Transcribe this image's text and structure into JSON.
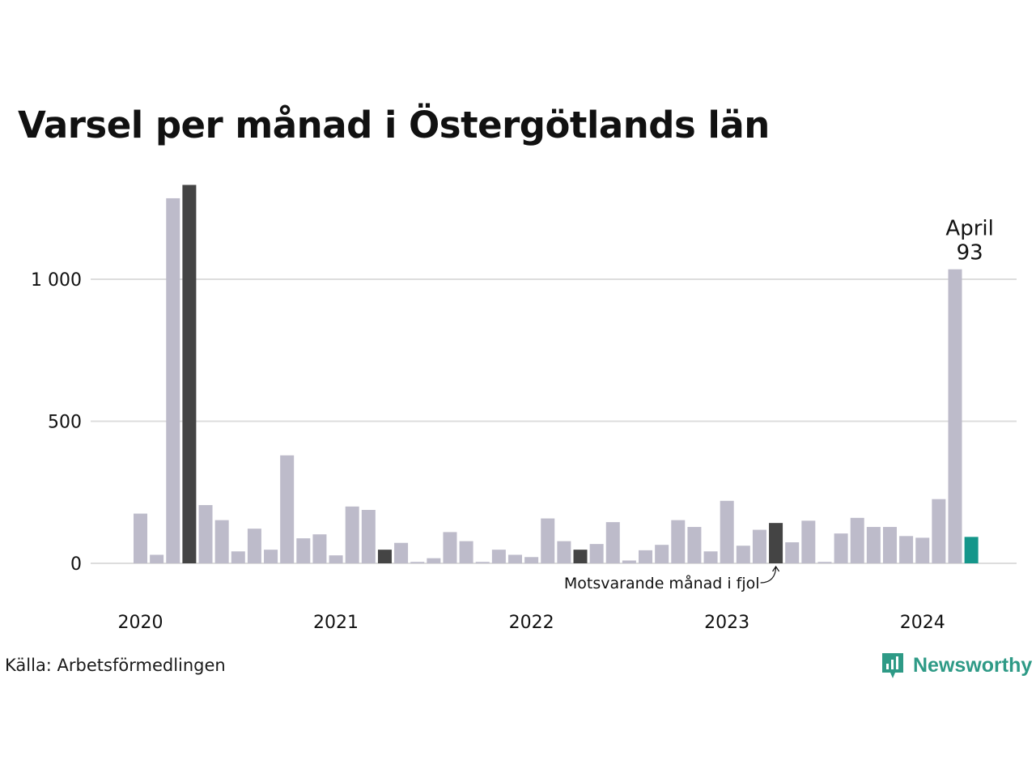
{
  "title": "Varsel per månad i Östergötlands län",
  "source": "Källa: Arbetsförmedlingen",
  "brand": {
    "name": "Newsworthy",
    "icon": "newsworthy-logo-icon"
  },
  "colors": {
    "bar": "#bdbbca",
    "same_month_last_years": "#444444",
    "current": "#14968a",
    "grid": "#dddddd"
  },
  "chart_data": {
    "type": "bar",
    "x_tick_labels": [
      "2020",
      "2021",
      "2022",
      "2023",
      "2024"
    ],
    "y_ticks": [
      0,
      500,
      1000
    ],
    "y_tick_labels": [
      "0",
      "500",
      "1 000"
    ],
    "ylim": [
      0,
      1380
    ],
    "grid": true,
    "categories": [
      "2020-01",
      "2020-02",
      "2020-03",
      "2020-04",
      "2020-05",
      "2020-06",
      "2020-07",
      "2020-08",
      "2020-09",
      "2020-10",
      "2020-11",
      "2020-12",
      "2021-01",
      "2021-02",
      "2021-03",
      "2021-04",
      "2021-05",
      "2021-06",
      "2021-07",
      "2021-08",
      "2021-09",
      "2021-10",
      "2021-11",
      "2021-12",
      "2022-01",
      "2022-02",
      "2022-03",
      "2022-04",
      "2022-05",
      "2022-06",
      "2022-07",
      "2022-08",
      "2022-09",
      "2022-10",
      "2022-11",
      "2022-12",
      "2023-01",
      "2023-02",
      "2023-03",
      "2023-04",
      "2023-05",
      "2023-06",
      "2023-07",
      "2023-08",
      "2023-09",
      "2023-10",
      "2023-11",
      "2023-12",
      "2024-01",
      "2024-02",
      "2024-03",
      "2024-04"
    ],
    "values": [
      175,
      30,
      1285,
      1332,
      205,
      152,
      42,
      122,
      48,
      380,
      88,
      102,
      28,
      200,
      188,
      48,
      72,
      5,
      18,
      110,
      78,
      5,
      48,
      30,
      22,
      158,
      78,
      48,
      68,
      145,
      10,
      46,
      65,
      152,
      128,
      42,
      220,
      62,
      118,
      142,
      74,
      150,
      5,
      105,
      160,
      128,
      128,
      96,
      90,
      226,
      1035,
      93
    ],
    "highlight_same_month": [
      "2020-04",
      "2021-04",
      "2022-04",
      "2023-04"
    ],
    "current": "2024-04",
    "annotations": {
      "current_month": "April",
      "current_value": "93",
      "last_year_note": "Motsvarande månad i fjol"
    }
  }
}
